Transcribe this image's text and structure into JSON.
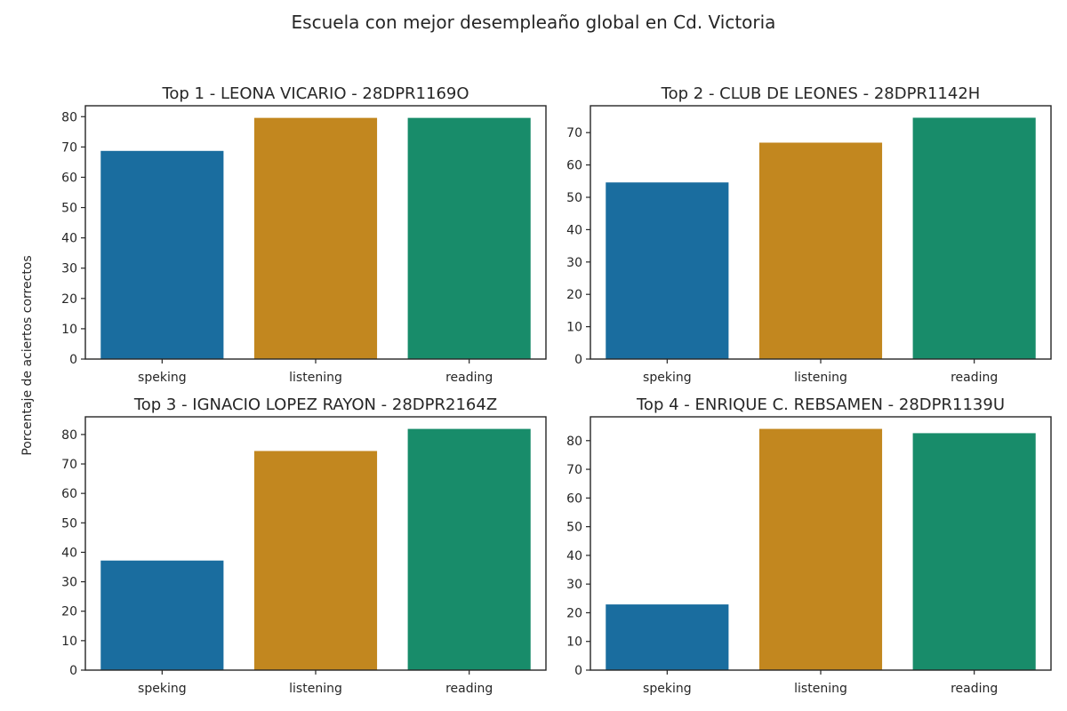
{
  "chart_data": {
    "suptitle": "Escuela con mejor desempleaño global en Cd. Victoria",
    "ylabel": "Porcentaje de aciertos correctos",
    "colors": [
      "#1a6d9f",
      "#c2871f",
      "#188c6a"
    ],
    "panels": [
      {
        "type": "bar",
        "title": "Top  1 - LEONA VICARIO - 28DPR1169O",
        "categories": [
          "speking",
          "listening",
          "reading"
        ],
        "values": [
          68.7,
          79.6,
          79.6
        ],
        "ylim": [
          0,
          83.6
        ],
        "yticks": [
          0,
          10,
          20,
          30,
          40,
          50,
          60,
          70,
          80
        ]
      },
      {
        "type": "bar",
        "title": "Top  2 - CLUB DE LEONES - 28DPR1142H",
        "categories": [
          "speking",
          "listening",
          "reading"
        ],
        "values": [
          54.6,
          66.9,
          74.6
        ],
        "ylim": [
          0,
          78.3
        ],
        "yticks": [
          0,
          10,
          20,
          30,
          40,
          50,
          60,
          70
        ]
      },
      {
        "type": "bar",
        "title": "Top  3 - IGNACIO LOPEZ RAYON - 28DPR2164Z",
        "categories": [
          "speking",
          "listening",
          "reading"
        ],
        "values": [
          37.2,
          74.4,
          81.9
        ],
        "ylim": [
          0,
          86.0
        ],
        "yticks": [
          0,
          10,
          20,
          30,
          40,
          50,
          60,
          70,
          80
        ]
      },
      {
        "type": "bar",
        "title": "Top  4 - ENRIQUE C. REBSAMEN - 28DPR1139U",
        "categories": [
          "speking",
          "listening",
          "reading"
        ],
        "values": [
          22.9,
          84.1,
          82.6
        ],
        "ylim": [
          0,
          88.3
        ],
        "yticks": [
          0,
          10,
          20,
          30,
          40,
          50,
          60,
          70,
          80
        ]
      }
    ]
  }
}
